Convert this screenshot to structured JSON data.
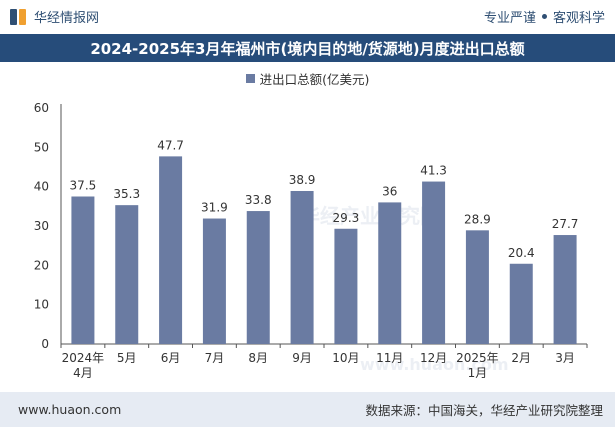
{
  "header": {
    "brand": "华经情报网",
    "tagline_left": "专业严谨",
    "tagline_right": "客观科学"
  },
  "footer": {
    "website": "www.huaon.com",
    "source": "数据来源：中国海关，华经产业研究院整理"
  },
  "watermark": {
    "text": "华经产业研究院",
    "url": "www.huaon.com"
  },
  "colors": {
    "bar": "#6a7ba2",
    "title_bg": "#264c7a",
    "footer_bg": "#e6ebf3"
  },
  "chart_data": {
    "type": "bar",
    "title": "2024-2025年3月年福州市(境内目的地/货源地)月度进出口总额",
    "legend": "进出口总额(亿美元)",
    "categories": [
      [
        "2024年",
        "4月"
      ],
      [
        "5月"
      ],
      [
        "6月"
      ],
      [
        "7月"
      ],
      [
        "8月"
      ],
      [
        "9月"
      ],
      [
        "10月"
      ],
      [
        "11月"
      ],
      [
        "12月"
      ],
      [
        "2025年",
        "1月"
      ],
      [
        "2月"
      ],
      [
        "3月"
      ]
    ],
    "values": [
      37.5,
      35.3,
      47.7,
      31.9,
      33.8,
      38.9,
      29.3,
      36,
      41.3,
      28.9,
      20.4,
      27.7
    ],
    "yticks": [
      0,
      10,
      20,
      30,
      40,
      50,
      60
    ],
    "ylim": [
      0,
      60
    ],
    "xlabel": "",
    "ylabel": ""
  }
}
